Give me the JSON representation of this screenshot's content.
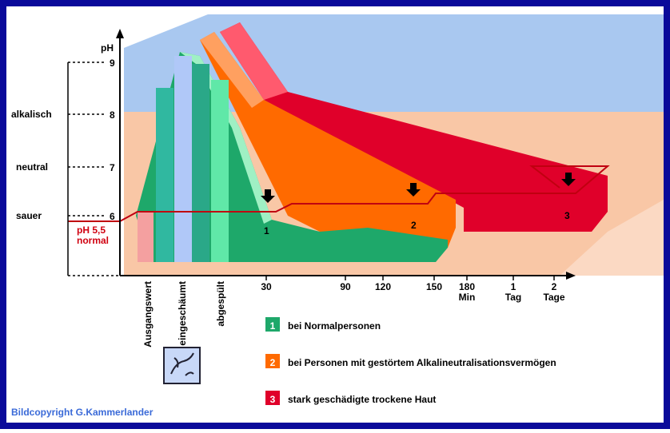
{
  "axis": {
    "label": "pH",
    "ticks": [
      "6",
      "7",
      "8",
      "9"
    ]
  },
  "levels": [
    "sauer",
    "neutral",
    "alkalisch"
  ],
  "normal": [
    "pH 5,5",
    "normal"
  ],
  "x_labels": [
    "30",
    "90",
    "120",
    "150",
    "180",
    "1",
    "2"
  ],
  "x_units": [
    "Min",
    "Tag",
    "Tage"
  ],
  "phases": [
    "Ausgangswert",
    "eingeschäumt",
    "abgespült"
  ],
  "markers": [
    "1",
    "2",
    "3"
  ],
  "legend": [
    {
      "number": "1",
      "label": "bei Normalpersonen"
    },
    {
      "number": "2",
      "label": "bei Personen mit gestörtem Alkalineutralisationsvermögen"
    },
    {
      "number": "3",
      "label": "stark geschädigte trockene Haut"
    }
  ],
  "copyright": "Bildcopyright G.Kammerlander"
}
